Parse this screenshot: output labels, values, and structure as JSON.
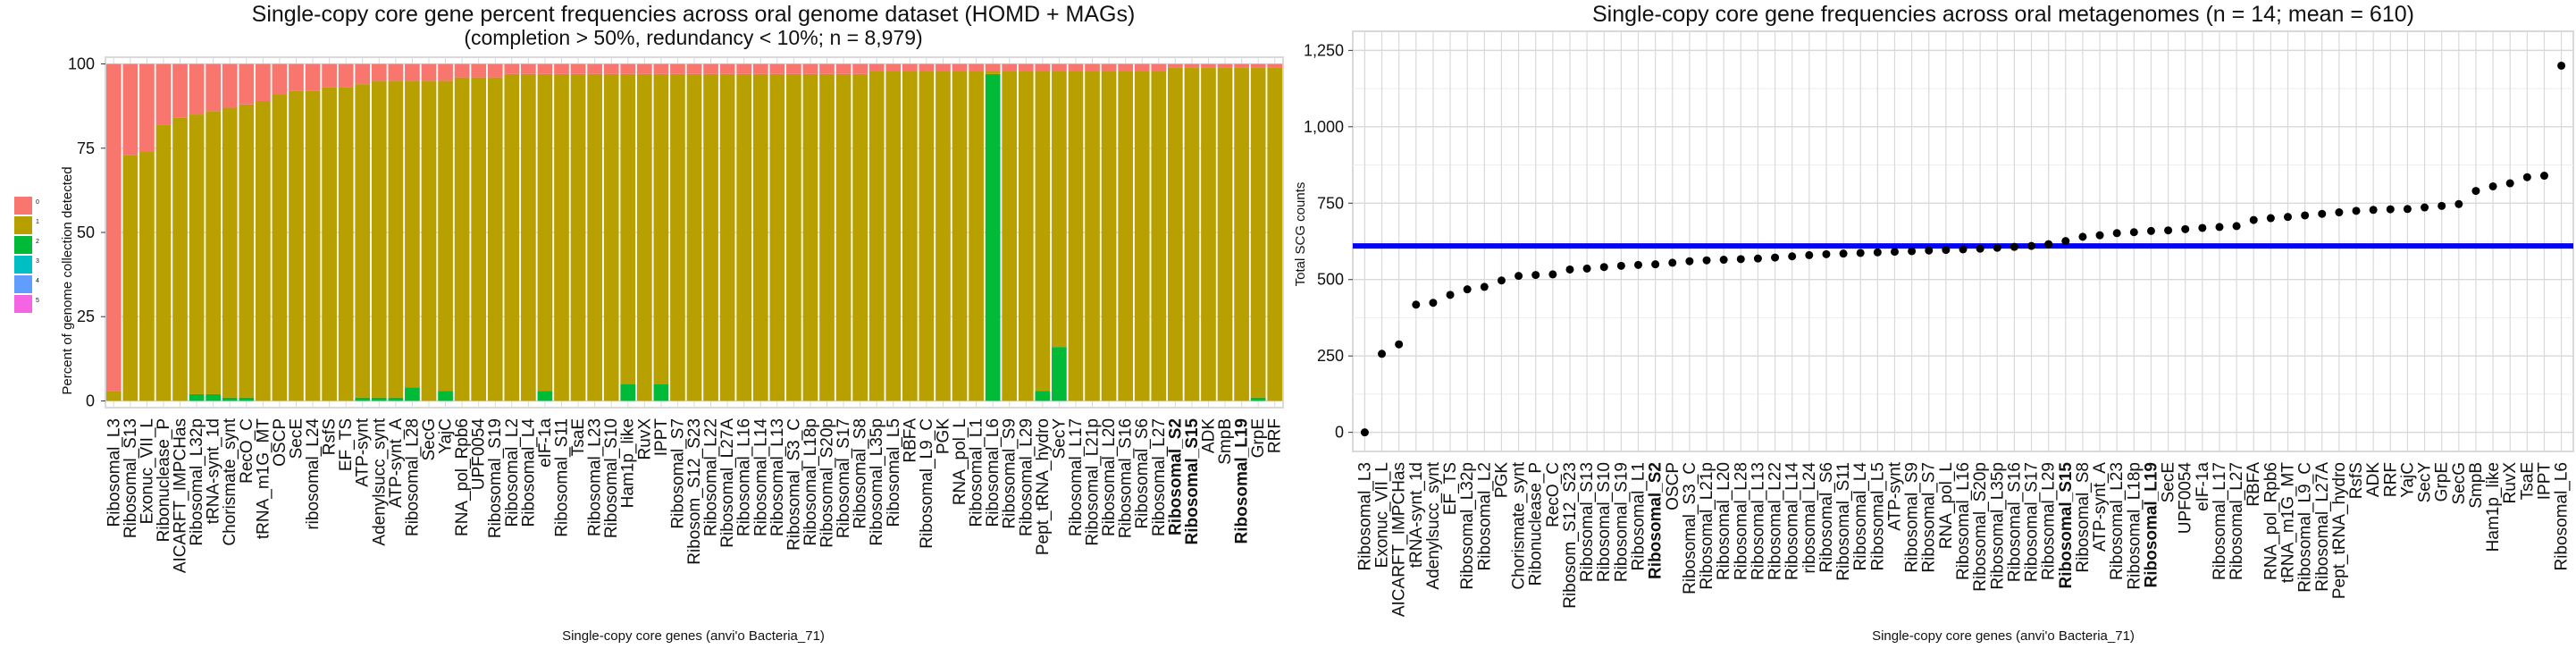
{
  "colors": {
    "yellow": "#B8A000",
    "red": "#F8766D",
    "green": "#00BA38",
    "meanline": "#0000FF",
    "grid": "#d9d9d9",
    "panel": "#ebebeb",
    "point": "#000000"
  },
  "legend": {
    "items": [
      {
        "label": "0",
        "color": "#F8766D"
      },
      {
        "label": "1",
        "color": "#B79F00"
      },
      {
        "label": "2",
        "color": "#00BA38"
      },
      {
        "label": "3",
        "color": "#00BFC4"
      },
      {
        "label": "4",
        "color": "#619CFF"
      },
      {
        "label": "5",
        "color": "#F564E3"
      }
    ]
  },
  "chart_data": [
    {
      "type": "bar",
      "title": "Single-copy core gene percent frequencies across oral genome dataset (HOMD + MAGs)",
      "subtitle": "(completion > 50%, redundancy < 10%; n = 8,979)",
      "xlabel": "Single-copy core genes (anvi'o Bacteria_71)",
      "ylabel": "Percent of genome collection detected",
      "ylim": [
        0,
        100
      ],
      "yticks": [
        0,
        25,
        50,
        75,
        100
      ],
      "stacked": true,
      "bold_categories": [
        "Ribosomal_S2",
        "Ribosomal_S15",
        "Ribosomal_L19"
      ],
      "categories": [
        "Ribosomal_L3",
        "Ribosomal_S13",
        "Exonuc_VII_L",
        "Ribonuclease_P",
        "AICARFT_IMPCHas",
        "Ribosomal_L32p",
        "tRNA-synt_1d",
        "Chorismate_synt",
        "RecO_C",
        "tRNA_m1G_MT",
        "OSCP",
        "SecE",
        "ribosomal_L24",
        "RsfS",
        "EF_TS",
        "ATP-synt",
        "Adenylsucc_synt",
        "ATP-synt_A",
        "Ribosomal_L28",
        "SecG",
        "YajC",
        "RNA_pol_Rpb6",
        "UPF0054",
        "Ribosomal_S19",
        "Ribosomal_L2",
        "Ribosomal_L4",
        "eIF-1a",
        "Ribosomal_S11",
        "TsaE",
        "Ribosomal_L23",
        "Ribosomal_S10",
        "Ham1p_like",
        "RuvX",
        "IPPT",
        "Ribosomal_S7",
        "Ribosom_S12_S23",
        "Ribosomal_L22",
        "Ribosomal_L27A",
        "Ribosomal_L16",
        "Ribosomal_L14",
        "Ribosomal_L13",
        "Ribosomal_S3_C",
        "Ribosomal_L18p",
        "Ribosomal_S20p",
        "Ribosomal_S17",
        "Ribosomal_S8",
        "Ribosomal_L35p",
        "Ribosomal_L5",
        "RBFA",
        "Ribosomal_L9_C",
        "PGK",
        "RNA_pol_L",
        "Ribosomal_L1",
        "Ribosomal_L6",
        "Ribosomal_S9",
        "Ribosomal_L29",
        "Pept_tRNA_hydro",
        "SecY",
        "Ribosomal_L17",
        "Ribosomal_L21p",
        "Ribosomal_L20",
        "Ribosomal_S16",
        "Ribosomal_S6",
        "Ribosomal_L27",
        "Ribosomal_S2",
        "Ribosomal_S15",
        "ADK",
        "SmpB",
        "Ribosomal_L19",
        "GrpE",
        "RRF"
      ],
      "series": [
        {
          "name": "0",
          "values": [
            97,
            27,
            26,
            18,
            16,
            15,
            14,
            13,
            12,
            11,
            9,
            8,
            8,
            7,
            7,
            6,
            5,
            5,
            5,
            5,
            5,
            4,
            4,
            4,
            3,
            3,
            3,
            3,
            3,
            3,
            3,
            3,
            3,
            3,
            3,
            3,
            3,
            3,
            3,
            3,
            3,
            3,
            3,
            3,
            3,
            3,
            2,
            2,
            2,
            2,
            2,
            2,
            2,
            2,
            2,
            2,
            2,
            2,
            2,
            2,
            2,
            2,
            2,
            2,
            1,
            1,
            1,
            1,
            1,
            1,
            1
          ]
        },
        {
          "name": "1",
          "values": [
            3,
            73,
            74,
            82,
            84,
            83,
            84,
            86,
            87,
            89,
            91,
            92,
            92,
            93,
            93,
            93,
            94,
            94,
            91,
            95,
            92,
            96,
            96,
            96,
            97,
            97,
            94,
            97,
            97,
            97,
            97,
            92,
            97,
            92,
            97,
            97,
            97,
            97,
            97,
            97,
            97,
            97,
            97,
            97,
            97,
            97,
            98,
            98,
            98,
            98,
            98,
            98,
            98,
            1,
            98,
            98,
            95,
            82,
            98,
            98,
            98,
            98,
            98,
            98,
            99,
            99,
            99,
            99,
            99,
            98,
            99
          ]
        },
        {
          "name": "2",
          "values": [
            0,
            0,
            0,
            0,
            0,
            2,
            2,
            1,
            1,
            0,
            0,
            0,
            0,
            0,
            0,
            1,
            1,
            1,
            4,
            0,
            3,
            0,
            0,
            0,
            0,
            0,
            3,
            0,
            0,
            0,
            0,
            5,
            0,
            5,
            0,
            0,
            0,
            0,
            0,
            0,
            0,
            0,
            0,
            0,
            0,
            0,
            0,
            0,
            0,
            0,
            0,
            0,
            0,
            97,
            0,
            0,
            3,
            16,
            0,
            0,
            0,
            0,
            0,
            0,
            0,
            0,
            0,
            0,
            0,
            1,
            0
          ]
        }
      ]
    },
    {
      "type": "scatter",
      "title": "Single-copy core gene frequencies across oral metagenomes (n = 14; mean = 610)",
      "xlabel": "Single-copy core genes (anvi'o Bacteria_71)",
      "ylabel": "Total SCG counts",
      "ylim": [
        0,
        1250
      ],
      "yticks": [
        0,
        250,
        500,
        750,
        1000,
        1250
      ],
      "ytick_labels": [
        "0",
        "250",
        "500",
        "750",
        "1,000",
        "1,250"
      ],
      "mean_line": 610,
      "bold_categories": [
        "Ribosomal_S2",
        "Ribosomal_S15",
        "Ribosomal_L19"
      ],
      "categories": [
        "Ribosomal_L3",
        "Exonuc_VII_L",
        "AICARFT_IMPCHas",
        "tRNA-synt_1d",
        "Adenylsucc_synt",
        "EF_TS",
        "Ribosomal_L32p",
        "Ribosomal_L2",
        "PGK",
        "Chorismate_synt",
        "Ribonuclease_P",
        "RecO_C",
        "Ribosom_S12_S23",
        "Ribosomal_S13",
        "Ribosomal_S10",
        "Ribosomal_S19",
        "Ribosomal_L1",
        "Ribosomal_S2",
        "OSCP",
        "Ribosomal_S3_C",
        "Ribosomal_L21p",
        "Ribosomal_L20",
        "Ribosomal_L28",
        "Ribosomal_L13",
        "Ribosomal_L22",
        "Ribosomal_L14",
        "ribosomal_L24",
        "Ribosomal_S6",
        "Ribosomal_S11",
        "Ribosomal_L4",
        "Ribosomal_L5",
        "ATP-synt",
        "Ribosomal_S9",
        "Ribosomal_S7",
        "RNA_pol_L",
        "Ribosomal_L16",
        "Ribosomal_S20p",
        "Ribosomal_L35p",
        "Ribosomal_S16",
        "Ribosomal_S17",
        "Ribosomal_L29",
        "Ribosomal_S15",
        "Ribosomal_S8",
        "ATP-synt_A",
        "Ribosomal_L23",
        "Ribosomal_L18p",
        "Ribosomal_L19",
        "SecE",
        "UPF0054",
        "eIF-1a",
        "Ribosomal_L17",
        "Ribosomal_L27",
        "RBFA",
        "RNA_pol_Rpb6",
        "tRNA_m1G_MT",
        "Ribosomal_L9_C",
        "Ribosomal_L27A",
        "Pept_tRNA_hydro",
        "RsfS",
        "ADK",
        "RRF",
        "YajC",
        "SecY",
        "GrpE",
        "SecG",
        "SmpB",
        "Ham1p_like",
        "RuvX",
        "TsaE",
        "IPPT",
        "Ribosomal_L6"
      ],
      "values": [
        0,
        257,
        288,
        418,
        424,
        450,
        468,
        476,
        497,
        512,
        515,
        517,
        533,
        536,
        541,
        545,
        548,
        550,
        555,
        560,
        563,
        565,
        567,
        569,
        572,
        576,
        580,
        583,
        585,
        587,
        589,
        591,
        593,
        595,
        597,
        599,
        601,
        604,
        607,
        610,
        616,
        626,
        640,
        645,
        652,
        655,
        659,
        661,
        665,
        669,
        672,
        675,
        695,
        701,
        705,
        710,
        715,
        720,
        725,
        728,
        730,
        731,
        736,
        741,
        747,
        790,
        805,
        815,
        835,
        840,
        1200
      ]
    }
  ]
}
